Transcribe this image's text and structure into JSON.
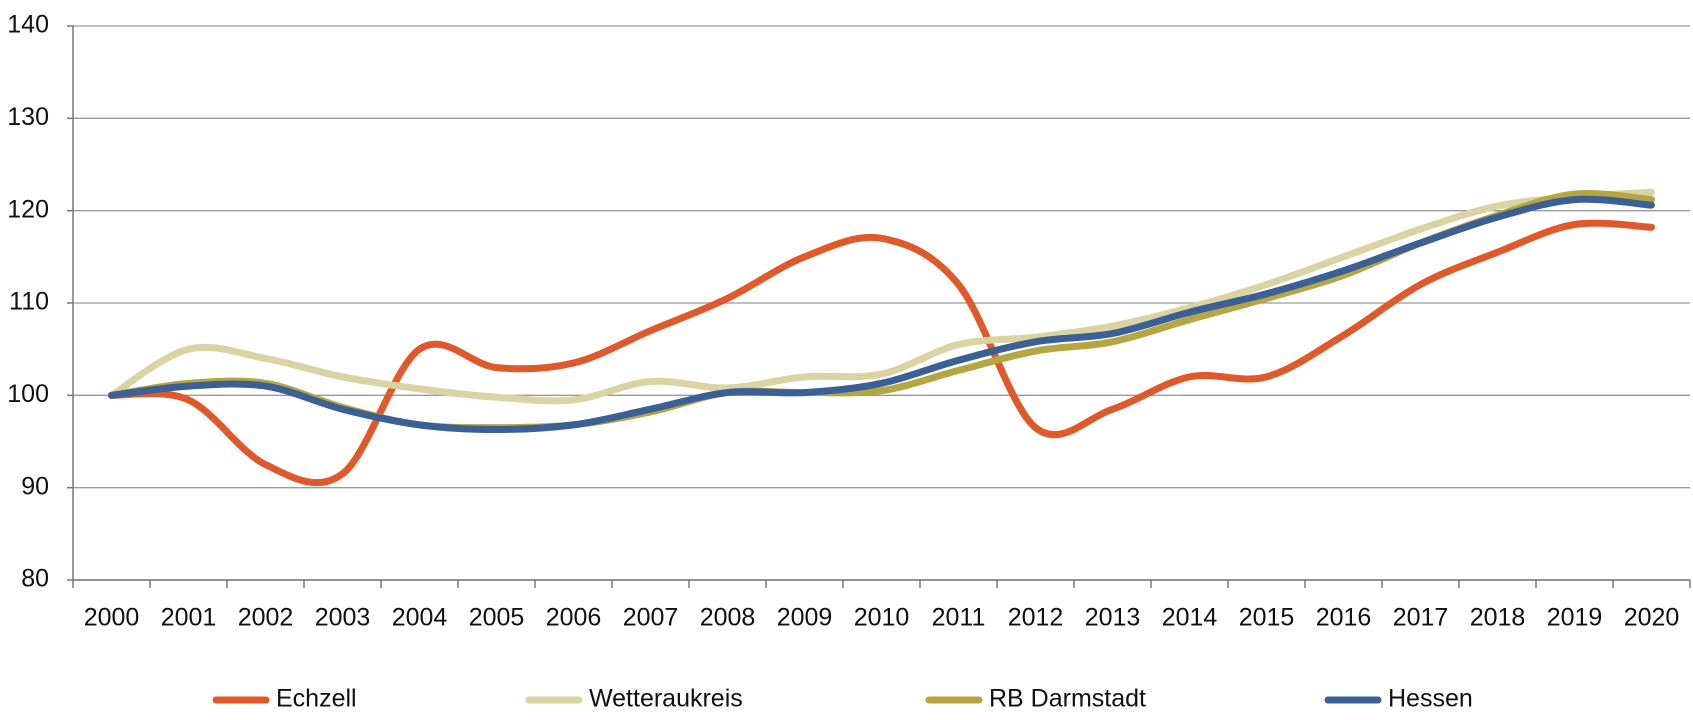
{
  "chart_data": {
    "type": "line",
    "categories": [
      "2000",
      "2001",
      "2002",
      "2003",
      "2004",
      "2005",
      "2006",
      "2007",
      "2008",
      "2009",
      "2010",
      "2011",
      "2012",
      "2013",
      "2014",
      "2015",
      "2016",
      "2017",
      "2018",
      "2019",
      "2020"
    ],
    "series": [
      {
        "name": "Echzell",
        "color": "#e0592a",
        "values": [
          100,
          99.5,
          92.5,
          91.5,
          105,
          103,
          103.5,
          107,
          110.5,
          115,
          117,
          112,
          96.5,
          98.5,
          102,
          102,
          106.5,
          112,
          115.5,
          118.5,
          118.2
        ]
      },
      {
        "name": "Wetteraukreis",
        "color": "#dad4a3",
        "values": [
          100,
          105,
          104,
          102,
          100.7,
          99.8,
          99.5,
          101.5,
          100.8,
          102,
          102.3,
          105.5,
          106.3,
          107.5,
          109.5,
          112,
          115,
          118,
          120.5,
          121.5,
          122
        ]
      },
      {
        "name": "RB Darmstadt",
        "color": "#b5a642",
        "values": [
          100,
          101.3,
          101.3,
          98.7,
          96.8,
          96.5,
          96.8,
          98.2,
          100.3,
          100.3,
          100.5,
          102.7,
          104.8,
          105.8,
          108.2,
          110.5,
          113,
          116.5,
          119.5,
          121.8,
          121.2
        ]
      },
      {
        "name": "Hessen",
        "color": "#3a6096",
        "values": [
          100,
          101,
          101,
          98.5,
          96.8,
          96.3,
          96.8,
          98.5,
          100.3,
          100.3,
          101.3,
          103.8,
          105.8,
          106.7,
          109,
          111,
          113.5,
          116.5,
          119.3,
          121.2,
          120.6
        ]
      }
    ],
    "ylim": [
      80,
      140
    ],
    "yticks": [
      80,
      90,
      100,
      110,
      120,
      130,
      140
    ],
    "grid": true,
    "legend": "bottom"
  }
}
